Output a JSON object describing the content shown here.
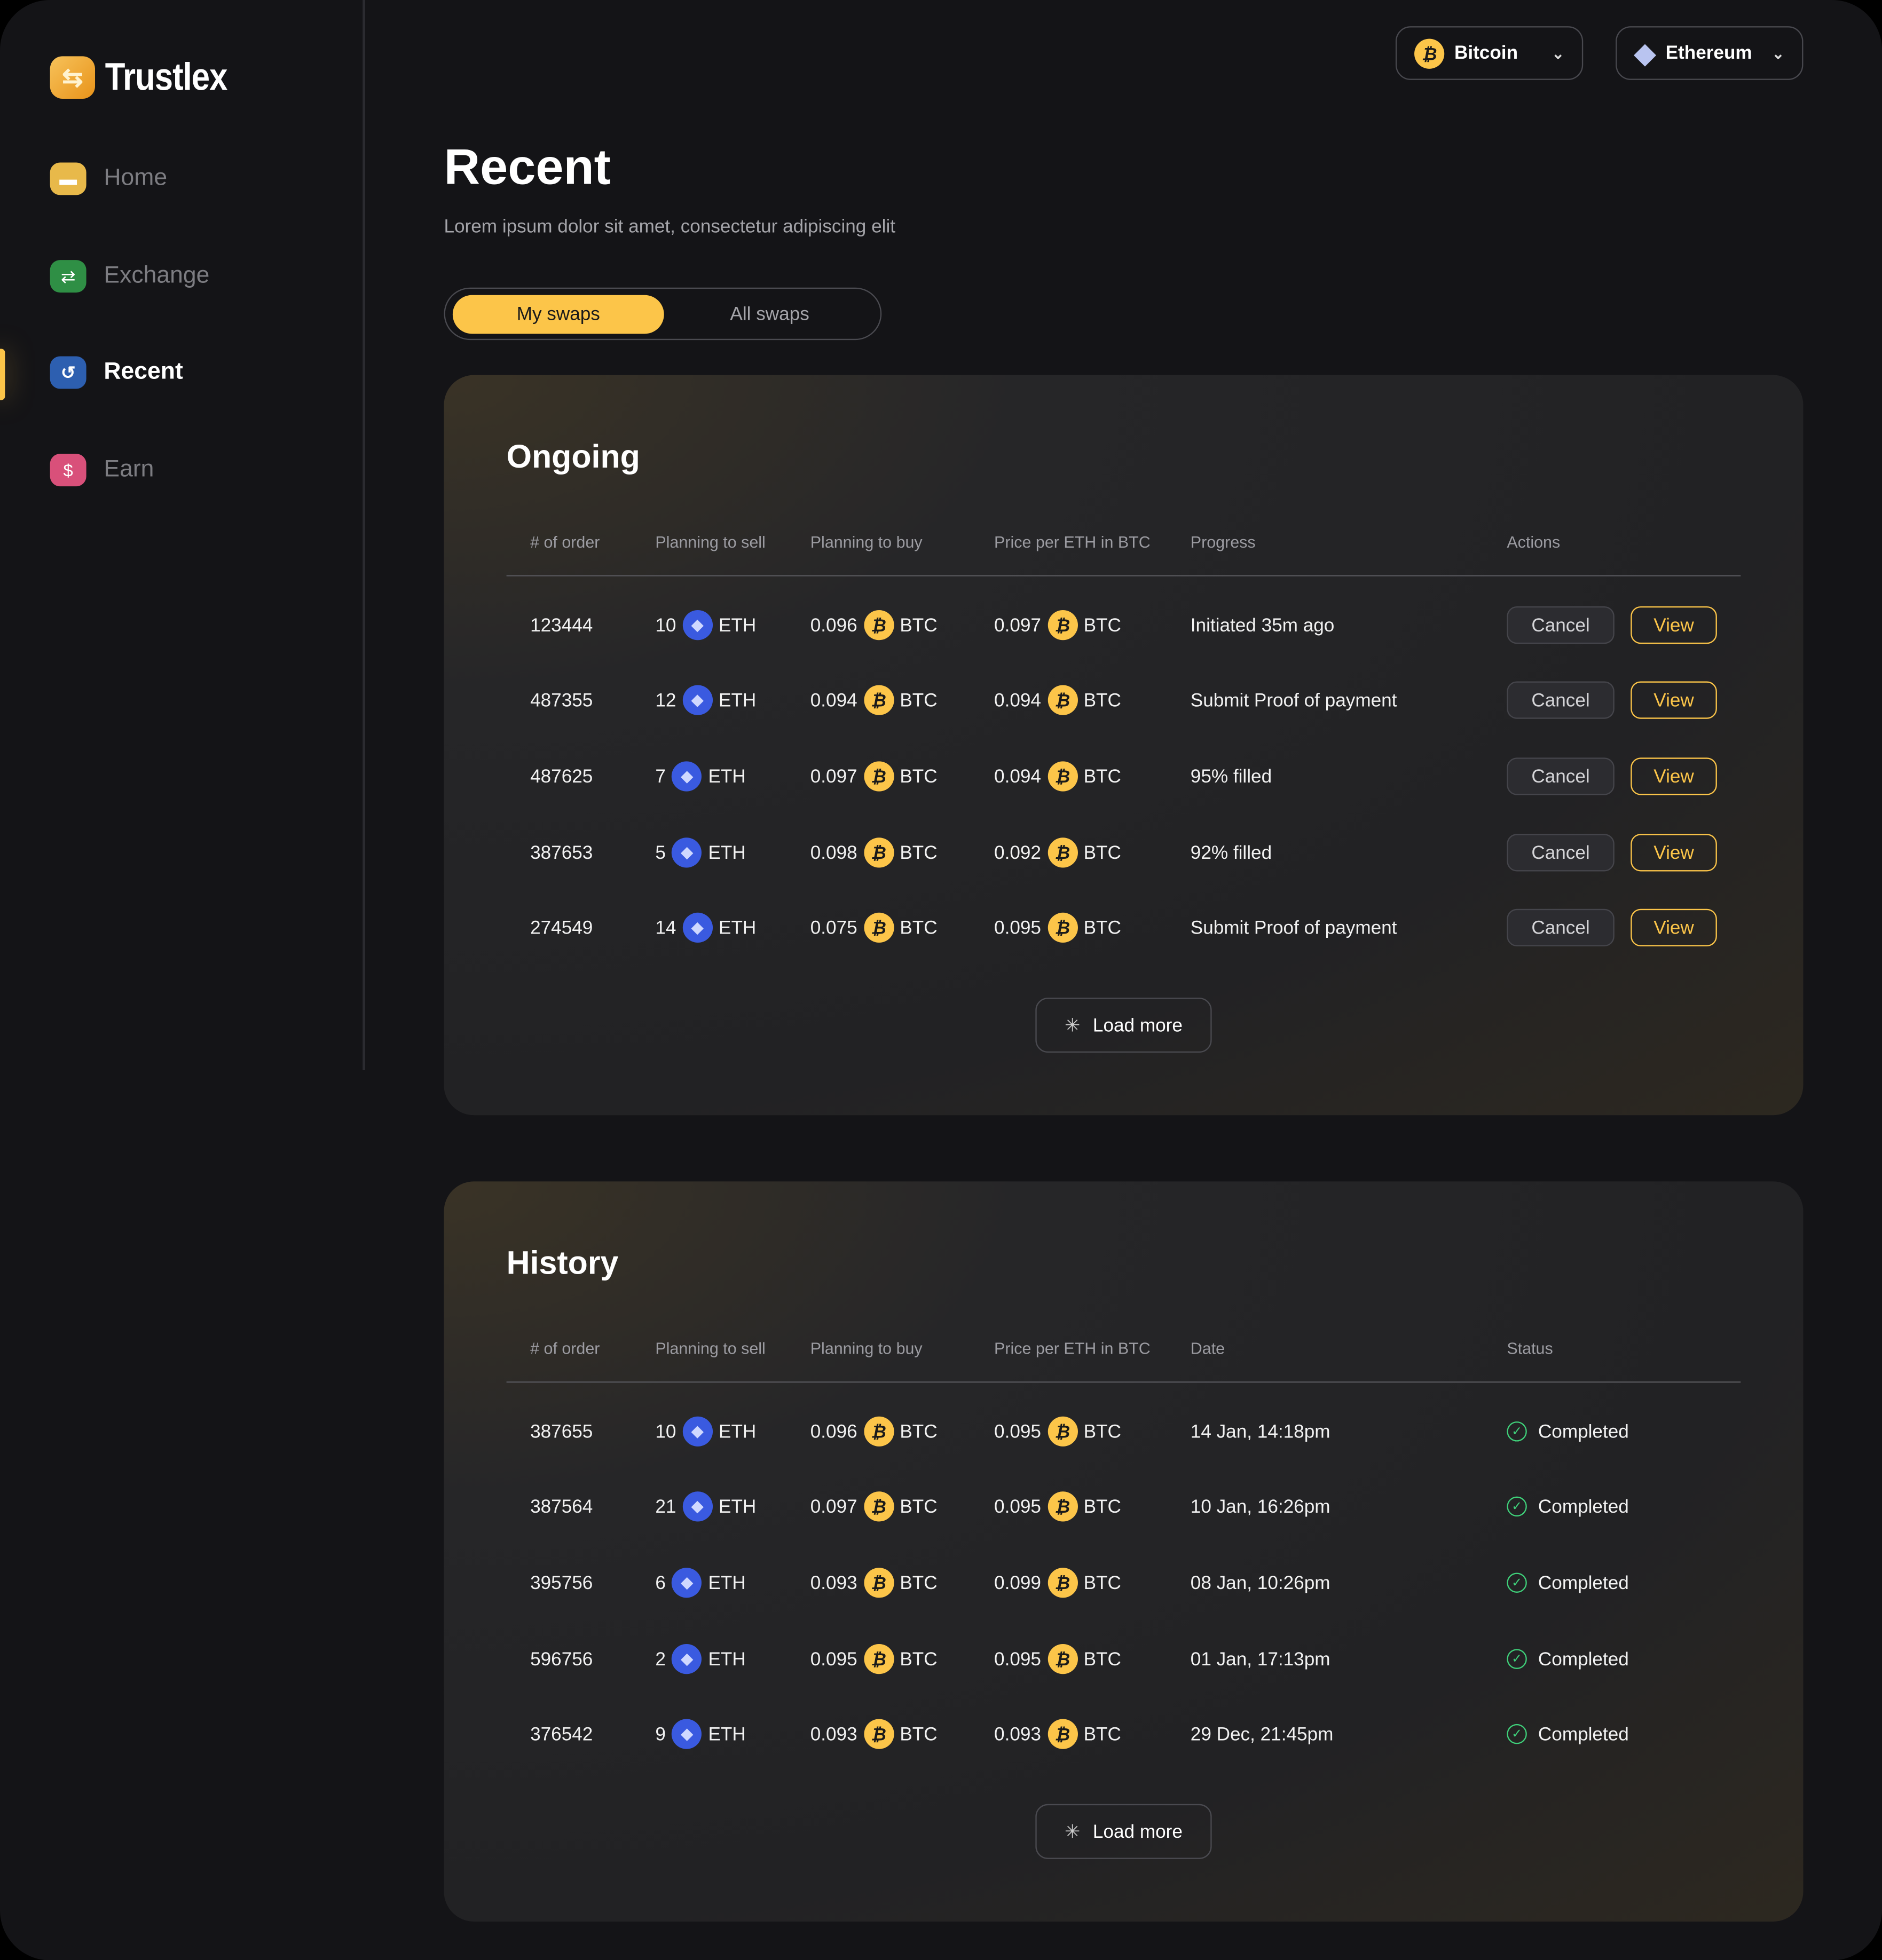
{
  "app": {
    "name": "Trustlex"
  },
  "sidebar": {
    "items": [
      {
        "label": "Home",
        "icon": "home-icon",
        "color": "#e8b94a"
      },
      {
        "label": "Exchange",
        "icon": "exchange-icon",
        "color": "#2f8f45"
      },
      {
        "label": "Recent",
        "icon": "history-icon",
        "color": "#2d5fb0",
        "active": true
      },
      {
        "label": "Earn",
        "icon": "dollar-icon",
        "color": "#d9507a"
      }
    ]
  },
  "header": {
    "dropdowns": [
      {
        "label": "Bitcoin",
        "icon": "bitcoin-icon"
      },
      {
        "label": "Ethereum",
        "icon": "ethereum-icon"
      }
    ]
  },
  "page": {
    "title": "Recent",
    "subtitle": "Lorem ipsum dolor sit amet, consectetur adipiscing elit"
  },
  "tabs": [
    {
      "label": "My swaps",
      "active": true
    },
    {
      "label": "All swaps"
    }
  ],
  "colors": {
    "accent": "#fcc549",
    "success": "#3fd17a"
  },
  "ongoing": {
    "title": "Ongoing",
    "columns": [
      "# of order",
      "Planning to sell",
      "Planning to buy",
      "Price per ETH in BTC",
      "Progress",
      "Actions"
    ],
    "rows": [
      {
        "order": "123444",
        "sell": "10",
        "buy": "0.096",
        "price": "0.097",
        "progress": "Initiated 35m ago"
      },
      {
        "order": "487355",
        "sell": "12",
        "buy": "0.094",
        "price": "0.094",
        "progress": "Submit Proof of payment"
      },
      {
        "order": "487625",
        "sell": "7",
        "buy": "0.097",
        "price": "0.094",
        "progress": "95% filled"
      },
      {
        "order": "387653",
        "sell": "5",
        "buy": "0.098",
        "price": "0.092",
        "progress": "92% filled"
      },
      {
        "order": "274549",
        "sell": "14",
        "buy": "0.075",
        "price": "0.095",
        "progress": "Submit Proof of payment"
      }
    ],
    "cancel_label": "Cancel",
    "view_label": "View",
    "load_more": "Load more"
  },
  "history": {
    "title": "History",
    "columns": [
      "# of order",
      "Planning to sell",
      "Planning to buy",
      "Price per ETH in BTC",
      "Date",
      "Status"
    ],
    "rows": [
      {
        "order": "387655",
        "sell": "10",
        "buy": "0.096",
        "price": "0.095",
        "date": "14 Jan, 14:18pm",
        "status": "Completed"
      },
      {
        "order": "387564",
        "sell": "21",
        "buy": "0.097",
        "price": "0.095",
        "date": "10 Jan, 16:26pm",
        "status": "Completed"
      },
      {
        "order": "395756",
        "sell": "6",
        "buy": "0.093",
        "price": "0.099",
        "date": "08 Jan, 10:26pm",
        "status": "Completed"
      },
      {
        "order": "596756",
        "sell": "2",
        "buy": "0.095",
        "price": "0.095",
        "date": "01 Jan, 17:13pm",
        "status": "Completed"
      },
      {
        "order": "376542",
        "sell": "9",
        "buy": "0.093",
        "price": "0.093",
        "date": "29 Dec, 21:45pm",
        "status": "Completed"
      }
    ],
    "load_more": "Load more"
  },
  "units": {
    "eth": "ETH",
    "btc": "BTC"
  }
}
